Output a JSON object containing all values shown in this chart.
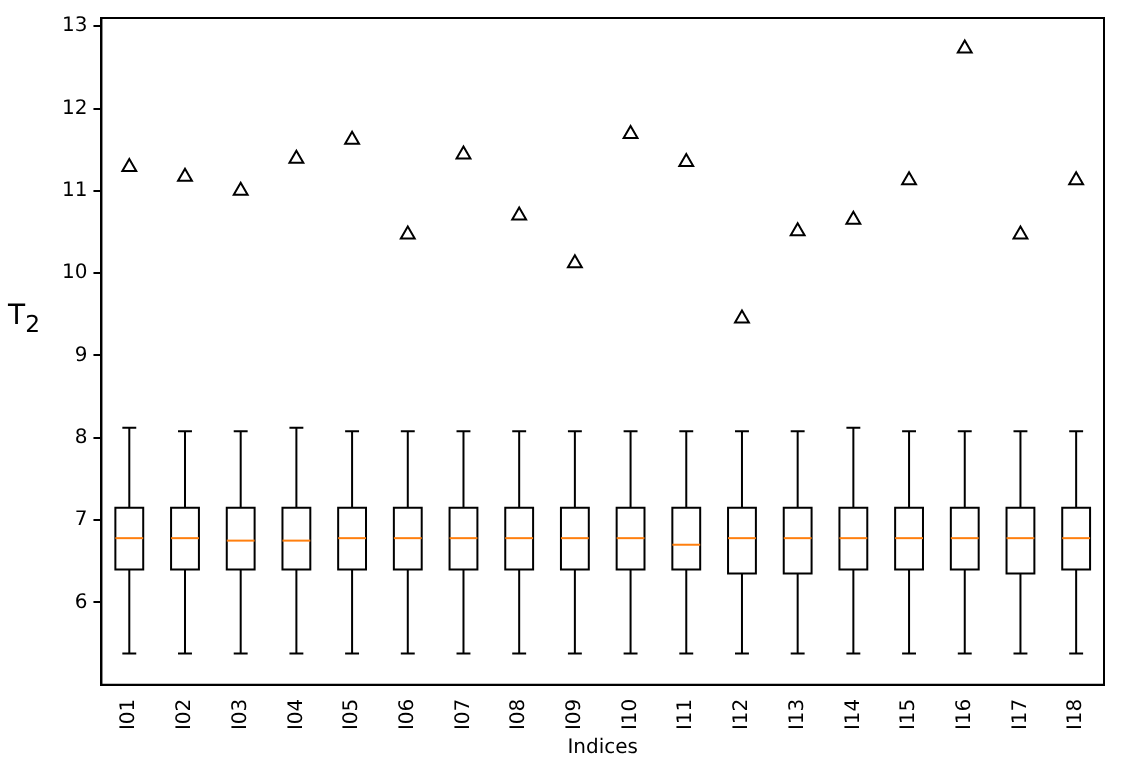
{
  "chart_data": {
    "type": "box",
    "xlabel": "Indices",
    "ylabel": "T$_{2}$",
    "marker": "triangle",
    "grid": false,
    "legend": false,
    "categories": [
      "I01",
      "I02",
      "I03",
      "I04",
      "I05",
      "I06",
      "I07",
      "I08",
      "I09",
      "I10",
      "I11",
      "I12",
      "I13",
      "I14",
      "I15",
      "I16",
      "I17",
      "I18"
    ],
    "ylim": [
      5.0,
      13.1
    ],
    "yticks": [
      6,
      7,
      8,
      9,
      10,
      11,
      12,
      13
    ],
    "boxes": [
      {
        "low": 5.38,
        "q1": 6.4,
        "median": 6.78,
        "q3": 7.15,
        "high": 8.12,
        "outliers": [
          11.29
        ]
      },
      {
        "low": 5.38,
        "q1": 6.4,
        "median": 6.78,
        "q3": 7.15,
        "high": 8.08,
        "outliers": [
          11.17
        ]
      },
      {
        "low": 5.38,
        "q1": 6.4,
        "median": 6.75,
        "q3": 7.15,
        "high": 8.08,
        "outliers": [
          11.0
        ]
      },
      {
        "low": 5.38,
        "q1": 6.4,
        "median": 6.75,
        "q3": 7.15,
        "high": 8.12,
        "outliers": [
          11.39
        ]
      },
      {
        "low": 5.38,
        "q1": 6.4,
        "median": 6.78,
        "q3": 7.15,
        "high": 8.08,
        "outliers": [
          11.62
        ]
      },
      {
        "low": 5.38,
        "q1": 6.4,
        "median": 6.78,
        "q3": 7.15,
        "high": 8.08,
        "outliers": [
          10.47
        ]
      },
      {
        "low": 5.38,
        "q1": 6.4,
        "median": 6.78,
        "q3": 7.15,
        "high": 8.08,
        "outliers": [
          11.44
        ]
      },
      {
        "low": 5.38,
        "q1": 6.4,
        "median": 6.78,
        "q3": 7.15,
        "high": 8.08,
        "outliers": [
          10.7
        ]
      },
      {
        "low": 5.38,
        "q1": 6.4,
        "median": 6.78,
        "q3": 7.15,
        "high": 8.08,
        "outliers": [
          10.12
        ]
      },
      {
        "low": 5.38,
        "q1": 6.4,
        "median": 6.78,
        "q3": 7.15,
        "high": 8.08,
        "outliers": [
          11.69
        ]
      },
      {
        "low": 5.38,
        "q1": 6.4,
        "median": 6.7,
        "q3": 7.15,
        "high": 8.08,
        "outliers": [
          11.35
        ]
      },
      {
        "low": 5.38,
        "q1": 6.35,
        "median": 6.78,
        "q3": 7.15,
        "high": 8.08,
        "outliers": [
          9.45
        ]
      },
      {
        "low": 5.38,
        "q1": 6.35,
        "median": 6.78,
        "q3": 7.15,
        "high": 8.08,
        "outliers": [
          10.51
        ]
      },
      {
        "low": 5.38,
        "q1": 6.4,
        "median": 6.78,
        "q3": 7.15,
        "high": 8.12,
        "outliers": [
          10.65
        ]
      },
      {
        "low": 5.38,
        "q1": 6.4,
        "median": 6.78,
        "q3": 7.15,
        "high": 8.08,
        "outliers": [
          11.13
        ]
      },
      {
        "low": 5.38,
        "q1": 6.4,
        "median": 6.78,
        "q3": 7.15,
        "high": 8.08,
        "outliers": [
          12.73
        ]
      },
      {
        "low": 5.38,
        "q1": 6.35,
        "median": 6.78,
        "q3": 7.15,
        "high": 8.08,
        "outliers": [
          10.47
        ]
      },
      {
        "low": 5.38,
        "q1": 6.4,
        "median": 6.78,
        "q3": 7.15,
        "high": 8.08,
        "outliers": [
          11.13
        ]
      }
    ]
  }
}
